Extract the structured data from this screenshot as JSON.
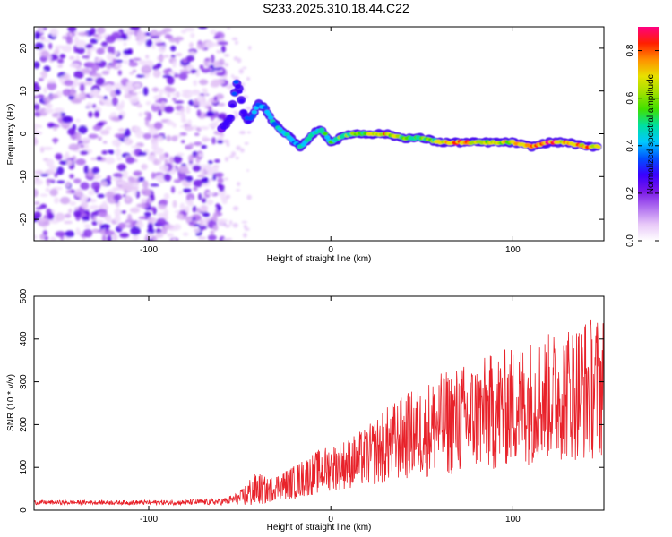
{
  "title": "S233.2025.310.18.44.C22",
  "chart_data": [
    {
      "type": "heatmap",
      "title": "S233.2025.310.18.44.C22",
      "xlabel": "Height of straight line (km)",
      "ylabel": "Frequency (Hz)",
      "xlim": [
        -163,
        150
      ],
      "ylim": [
        -25,
        25
      ],
      "xticks": [
        "-100",
        "0",
        "100"
      ],
      "yticks": [
        "20",
        "10",
        "0",
        "-10",
        "-20"
      ],
      "colorbar": {
        "label": "Normalized spectral amplitude",
        "range": [
          0,
          0.9
        ],
        "ticks": [
          "0.0",
          "0.2",
          "0.4",
          "0.6",
          "0.8"
        ],
        "colors": [
          "#ffffff",
          "#e8c8f8",
          "#b070f0",
          "#7a18e8",
          "#3a00ff",
          "#0050ff",
          "#00c8ff",
          "#00e0a0",
          "#40e000",
          "#a0e000",
          "#e8e000",
          "#ff9000",
          "#ff2000",
          "#ff0080"
        ]
      },
      "noise_x_range": [
        -163,
        -58
      ],
      "ridge": {
        "x": [
          -60,
          -55,
          -52,
          -50,
          -48,
          -45,
          -42,
          -40,
          -36,
          -32,
          -28,
          -25,
          -22,
          -20,
          -17,
          -14,
          -10,
          -5,
          0,
          5,
          10,
          20,
          30,
          40,
          50,
          60,
          70,
          80,
          90,
          100,
          110,
          120,
          130,
          140,
          147
        ],
        "y": [
          1,
          4,
          12,
          10,
          5,
          3,
          5,
          7,
          6,
          3,
          1,
          0,
          -1,
          -2,
          -3,
          -2,
          0,
          1,
          -2,
          -1,
          0,
          0,
          0,
          -1,
          -1,
          -2,
          -2,
          -2,
          -2,
          -2,
          -3,
          -2,
          -2,
          -3,
          -3
        ],
        "amplitude": [
          0.25,
          0.35,
          0.35,
          0.3,
          0.3,
          0.35,
          0.4,
          0.45,
          0.45,
          0.45,
          0.5,
          0.5,
          0.45,
          0.45,
          0.45,
          0.5,
          0.5,
          0.55,
          0.55,
          0.6,
          0.6,
          0.65,
          0.8,
          0.6,
          0.6,
          0.7,
          0.9,
          0.7,
          0.7,
          0.75,
          0.8,
          0.9,
          0.85,
          0.8,
          0.75
        ]
      }
    },
    {
      "type": "line",
      "xlabel": "Height of straight line (km)",
      "ylabel": "SNR (10 * v/v)",
      "xlim": [
        -163,
        150
      ],
      "ylim": [
        0,
        500
      ],
      "xticks": [
        "-100",
        "0",
        "100"
      ],
      "yticks": [
        "0",
        "100",
        "200",
        "300",
        "400",
        "500"
      ],
      "color": "#e8222a",
      "envelope": {
        "x": [
          -163,
          -120,
          -80,
          -60,
          -50,
          -45,
          -40,
          -35,
          -30,
          -20,
          -10,
          0,
          10,
          20,
          30,
          40,
          50,
          60,
          70,
          80,
          90,
          100,
          110,
          120,
          130,
          140,
          150
        ],
        "mean": [
          18,
          18,
          18,
          20,
          28,
          40,
          50,
          45,
          55,
          65,
          85,
          100,
          110,
          125,
          150,
          170,
          185,
          200,
          210,
          220,
          230,
          245,
          255,
          265,
          275,
          285,
          290
        ],
        "amp": [
          5,
          5,
          6,
          8,
          15,
          35,
          40,
          30,
          30,
          40,
          50,
          55,
          60,
          70,
          90,
          100,
          110,
          120,
          130,
          130,
          140,
          140,
          150,
          150,
          160,
          170,
          170
        ]
      }
    }
  ]
}
